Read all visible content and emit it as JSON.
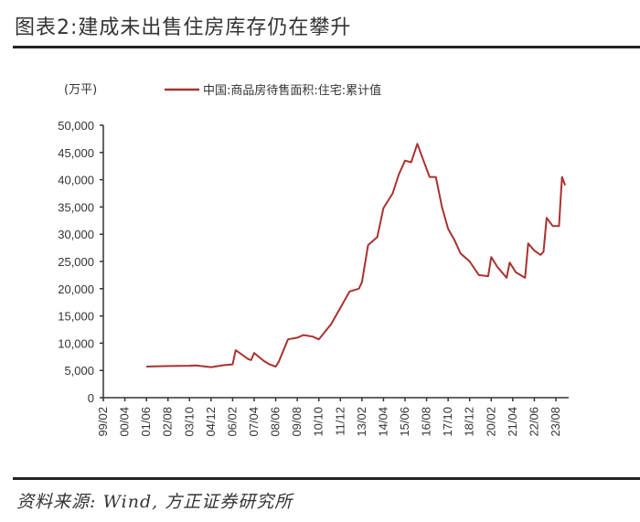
{
  "header": {
    "title": "图表2:建成未出售住房库存仍在攀升"
  },
  "footer": {
    "source": "资料来源: Wind, 方正证券研究所"
  },
  "colors": {
    "series": "#A8322F",
    "axis": "#333333",
    "rule": "#222222"
  },
  "chart_data": {
    "type": "line",
    "title": "建成未出售住房库存仍在攀升",
    "ylabel": "(万平)",
    "xlabel": "",
    "ylim": [
      0,
      50000
    ],
    "yticks": [
      0,
      5000,
      10000,
      15000,
      20000,
      25000,
      30000,
      35000,
      40000,
      45000,
      50000
    ],
    "ytick_labels": [
      "0",
      "5,000",
      "10,000",
      "15,000",
      "20,000",
      "25,000",
      "30,000",
      "35,000",
      "40,000",
      "45,000",
      "50,000"
    ],
    "xtick_labels": [
      "99/02",
      "00/04",
      "01/06",
      "02/08",
      "03/10",
      "04/12",
      "06/02",
      "07/04",
      "08/06",
      "09/08",
      "10/10",
      "11/12",
      "13/02",
      "14/04",
      "15/06",
      "16/08",
      "17/10",
      "18/12",
      "20/02",
      "21/04",
      "22/06",
      "23/08"
    ],
    "grid": false,
    "legend_position": "top",
    "series": [
      {
        "name": "中国:商品房待售面积:住宅:累计值",
        "x": [
          "01/06",
          "02/08",
          "03/10",
          "04/02",
          "04/12",
          "05/08",
          "06/02",
          "06/04",
          "06/12",
          "07/02",
          "07/04",
          "07/10",
          "08/02",
          "08/06",
          "08/08",
          "09/02",
          "09/08",
          "09/12",
          "10/06",
          "10/10",
          "11/06",
          "11/12",
          "12/06",
          "12/12",
          "13/02",
          "13/06",
          "13/12",
          "14/04",
          "14/10",
          "15/02",
          "15/06",
          "15/10",
          "16/02",
          "16/06",
          "16/10",
          "17/02",
          "17/06",
          "17/10",
          "18/02",
          "18/06",
          "18/12",
          "19/06",
          "19/12",
          "20/02",
          "20/06",
          "20/12",
          "21/02",
          "21/06",
          "21/12",
          "22/02",
          "22/06",
          "22/10",
          "22/12",
          "23/02",
          "23/06",
          "23/10",
          "23/12",
          "24/02"
        ],
        "values": [
          5700,
          5800,
          5850,
          5900,
          5600,
          5950,
          6100,
          8700,
          7100,
          6900,
          8200,
          6800,
          6100,
          5700,
          6600,
          10700,
          11000,
          11500,
          11200,
          10700,
          13500,
          16500,
          19500,
          20000,
          21200,
          28000,
          29500,
          34800,
          37500,
          41000,
          43500,
          43200,
          46600,
          43500,
          40500,
          40500,
          35000,
          31000,
          29000,
          26500,
          25000,
          22500,
          22300,
          25800,
          24000,
          22000,
          24800,
          23000,
          22000,
          28300,
          27000,
          26200,
          26800,
          33000,
          31500,
          31500,
          40500,
          39000
        ]
      }
    ]
  }
}
